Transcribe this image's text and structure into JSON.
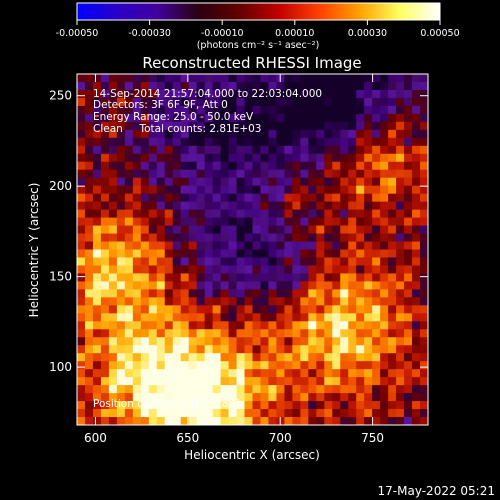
{
  "colors": {
    "background": "#000000",
    "text": "#ffffff",
    "colorbar_stops": [
      "#0000ff",
      "#2a00c8",
      "#40009a",
      "#2a0010",
      "#600000",
      "#c00000",
      "#ff4000",
      "#ffa000",
      "#ffff60",
      "#ffffff"
    ]
  },
  "chart_data": {
    "type": "heatmap",
    "title": "Reconstructed RHESSI Image",
    "xlabel": "Heliocentric X (arcsec)",
    "ylabel": "Heliocentric Y (arcsec)",
    "xlim": [
      590,
      780
    ],
    "ylim": [
      68,
      262
    ],
    "x_ticks": [
      600,
      650,
      700,
      750
    ],
    "y_ticks": [
      100,
      150,
      200,
      250
    ],
    "colorbar": {
      "min": -0.0005,
      "max": 0.0005,
      "ticks": [
        "-0.00050",
        "-0.00030",
        "-0.00010",
        "0.00010",
        "0.00030",
        "0.00050"
      ],
      "label": "(photons cm⁻² s⁻¹ asec⁻²)"
    },
    "annotations": [
      "14-Sep-2014 21:57:04.000 to 22:03:04.000",
      "Detectors: 3F 6F 9F, Att 0",
      "Energy Range: 25.0 - 50.0 keV",
      "Clean     Total counts: 2.81E+03",
      "Position of Peak = [663, 82]"
    ],
    "peak": {
      "x": 663,
      "y": 82
    }
  },
  "footer": {
    "timestamp": "17-May-2022 05:21"
  }
}
